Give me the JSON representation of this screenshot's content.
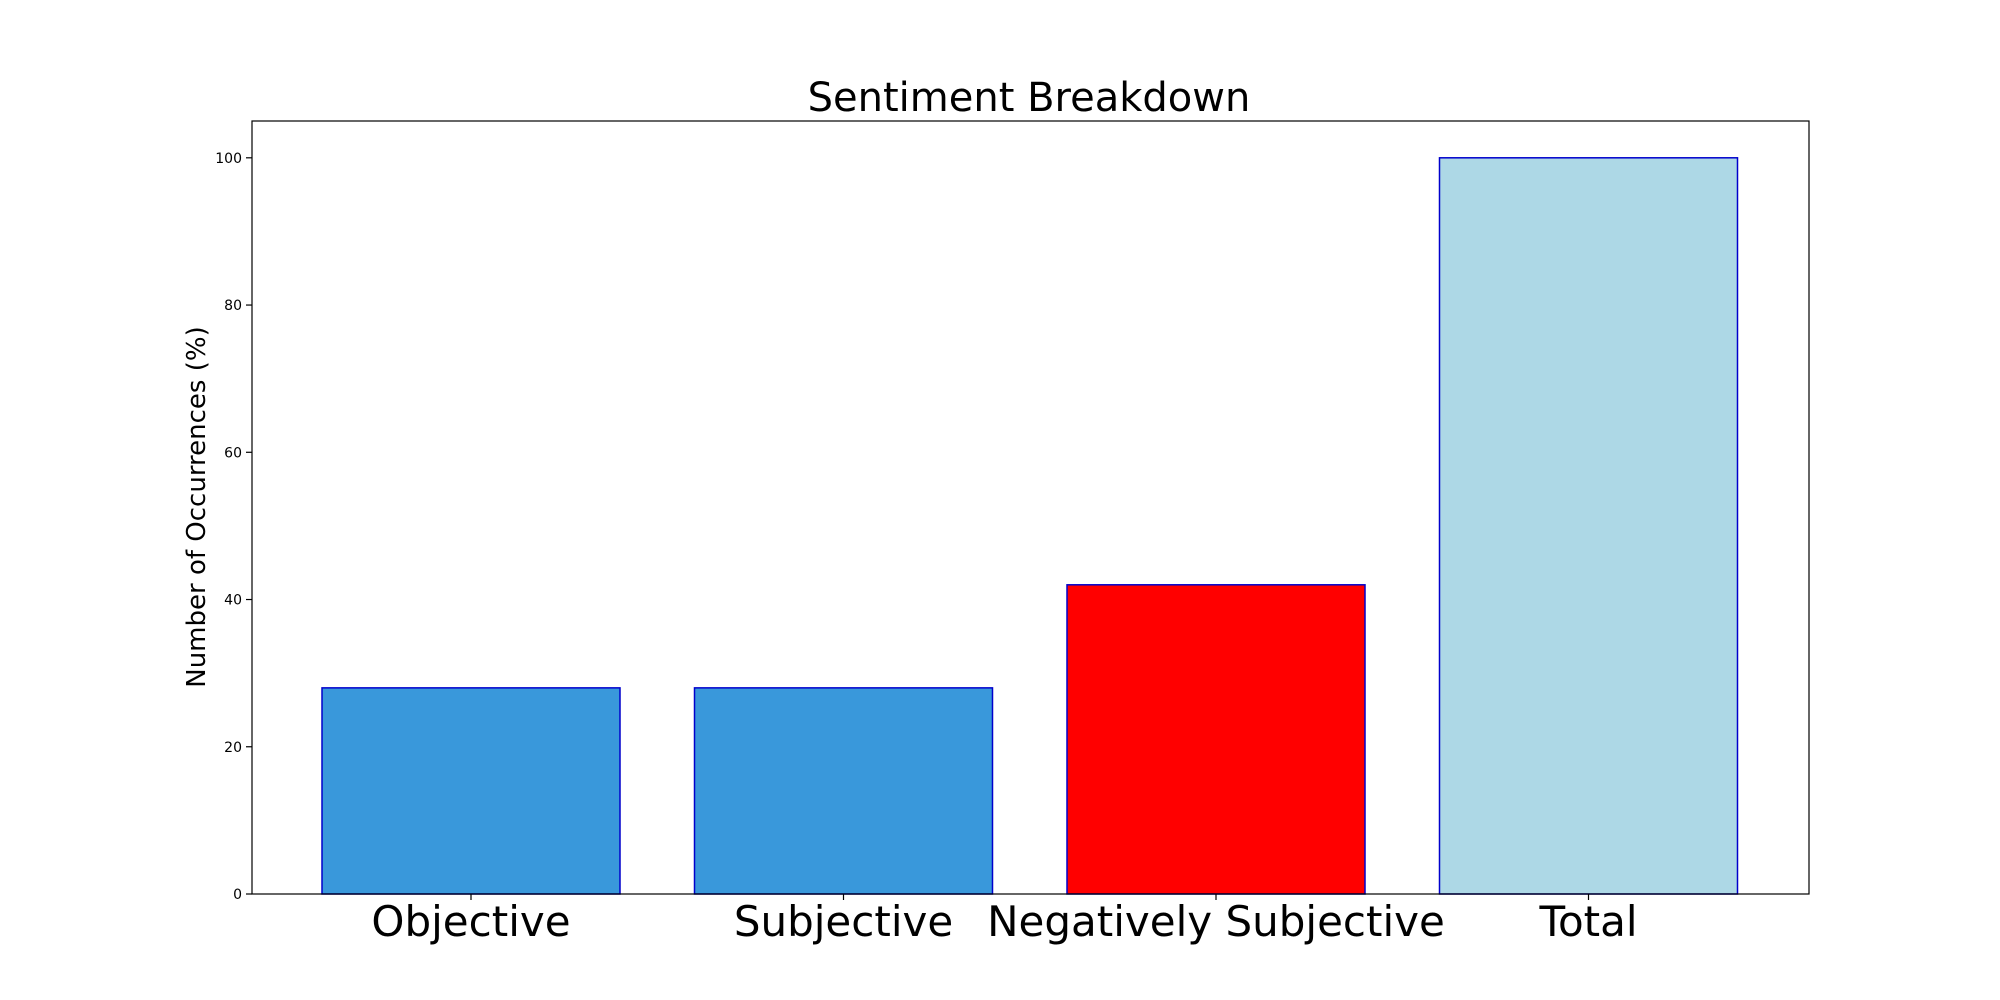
{
  "chart_data": {
    "type": "bar",
    "title": "Sentiment Breakdown",
    "xlabel": "",
    "ylabel": "Number of Occurrences (%)",
    "categories": [
      "Objective",
      "Subjective",
      "Negatively Subjective",
      "Total"
    ],
    "values": [
      28,
      28,
      42,
      100
    ],
    "bar_colors": [
      "#3998db",
      "#3998db",
      "#ff0000",
      "#add8e6"
    ],
    "edge_color": "#0000cc",
    "ylim": [
      0,
      105
    ],
    "yticks": [
      0,
      20,
      40,
      60,
      80,
      100
    ],
    "grid": false,
    "legend": "none"
  }
}
